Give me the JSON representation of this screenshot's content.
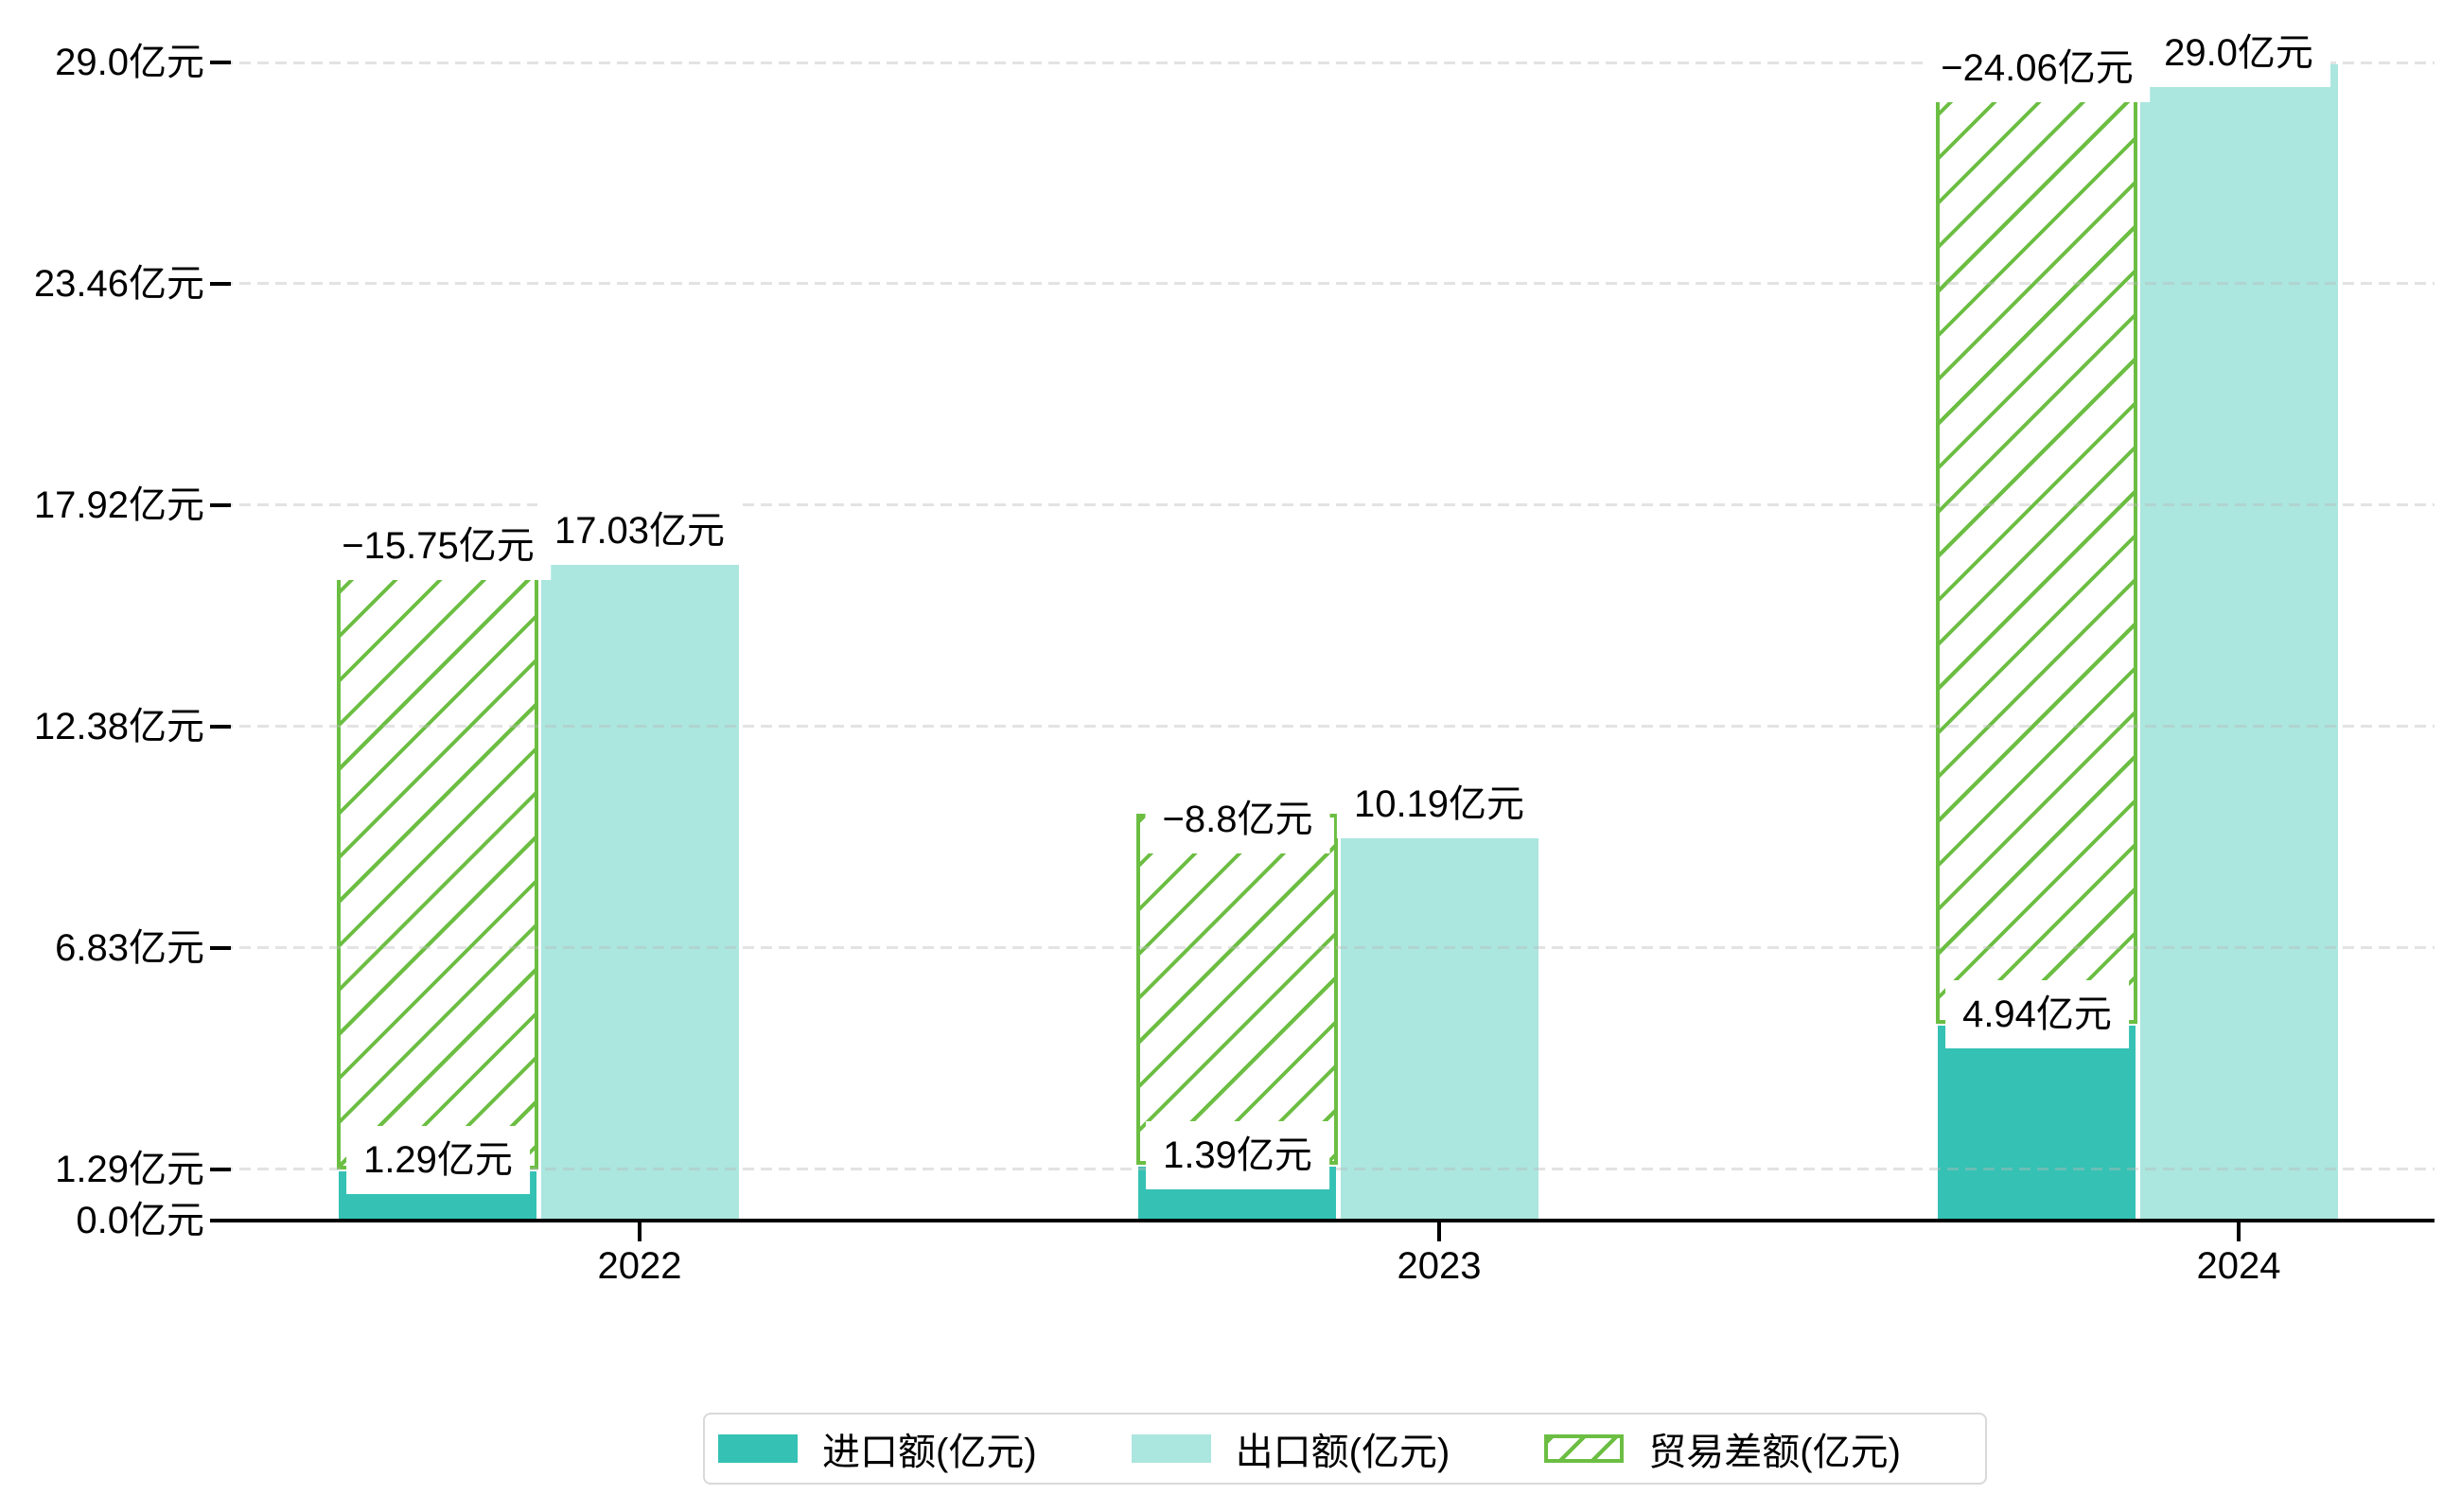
{
  "chart_data": {
    "type": "bar",
    "categories": [
      "2022",
      "2023",
      "2024"
    ],
    "series": [
      {
        "name": "进口额(亿元)",
        "values": [
          1.29,
          1.39,
          4.94
        ],
        "bar_labels": [
          "1.29亿元",
          "1.39亿元",
          "4.94亿元"
        ],
        "color": "#35c2b4",
        "style": "solid"
      },
      {
        "name": "出口额(亿元)",
        "values": [
          17.03,
          10.19,
          29.0
        ],
        "bar_labels": [
          "17.03亿元",
          "10.19亿元",
          "29.0亿元"
        ],
        "color": "#abe6df",
        "style": "solid"
      },
      {
        "name": "贸易差额(亿元)",
        "values": [
          -15.75,
          -8.8,
          -24.06
        ],
        "bar_labels": [
          "−15.75亿元",
          "−8.8亿元",
          "−24.06亿元"
        ],
        "color": "#6cbe43",
        "style": "hatched-outline",
        "spans_from_series": "进口额(亿元)",
        "spans_to_series": "出口额(亿元)"
      }
    ],
    "ylim": [
      0,
      29.0
    ],
    "yticks": [
      {
        "value": 0.0,
        "label": "0.0亿元"
      },
      {
        "value": 1.29,
        "label": "1.29亿元"
      },
      {
        "value": 6.83,
        "label": "6.83亿元"
      },
      {
        "value": 12.38,
        "label": "12.38亿元"
      },
      {
        "value": 17.92,
        "label": "17.92亿元"
      },
      {
        "value": 23.46,
        "label": "23.46亿元"
      },
      {
        "value": 29.0,
        "label": "29.0亿元"
      }
    ],
    "grid": "horizontal-dashed",
    "legend_position": "bottom-center"
  },
  "colors": {
    "import_bar": "#35c2b4",
    "export_bar": "#abe6df",
    "balance_hatch": "#6cbe43",
    "axis": "#000000",
    "gridline": "#e8e8e8",
    "legend_border": "#d9d9d9",
    "label_background": "#ffffff",
    "background": "#ffffff",
    "text": "#000000"
  }
}
